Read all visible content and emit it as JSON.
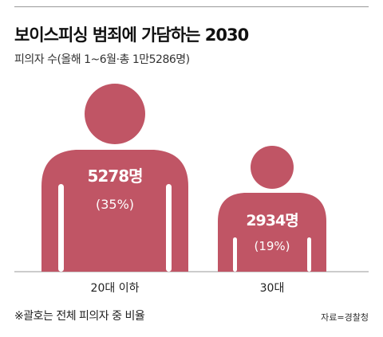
{
  "header": {
    "title": "보이스피싱 범죄에 가담하는 2030",
    "subtitle": "피의자 수(올해 1~6월·총 1만5286명)"
  },
  "chart_data": {
    "type": "bar",
    "categories": [
      "20대 이하",
      "30대"
    ],
    "values": [
      5278,
      2934
    ],
    "value_labels": [
      "5278명",
      "2934명"
    ],
    "share_labels": [
      "(35%)",
      "(19%)"
    ],
    "shares": [
      35,
      19
    ],
    "title": "보이스피싱 범죄에 가담하는 2030",
    "subtitle": "피의자 수(올해 1~6월·총 1만5286명)",
    "legend": "none",
    "grid": false
  },
  "colors": {
    "figure": "#c05565",
    "figure_text": "#ffffff",
    "baseline": "#999999"
  },
  "icon": "person-figure-icon",
  "footnote": "※괄호는 전체 피의자 중 비율",
  "source": "자료=경찰청"
}
